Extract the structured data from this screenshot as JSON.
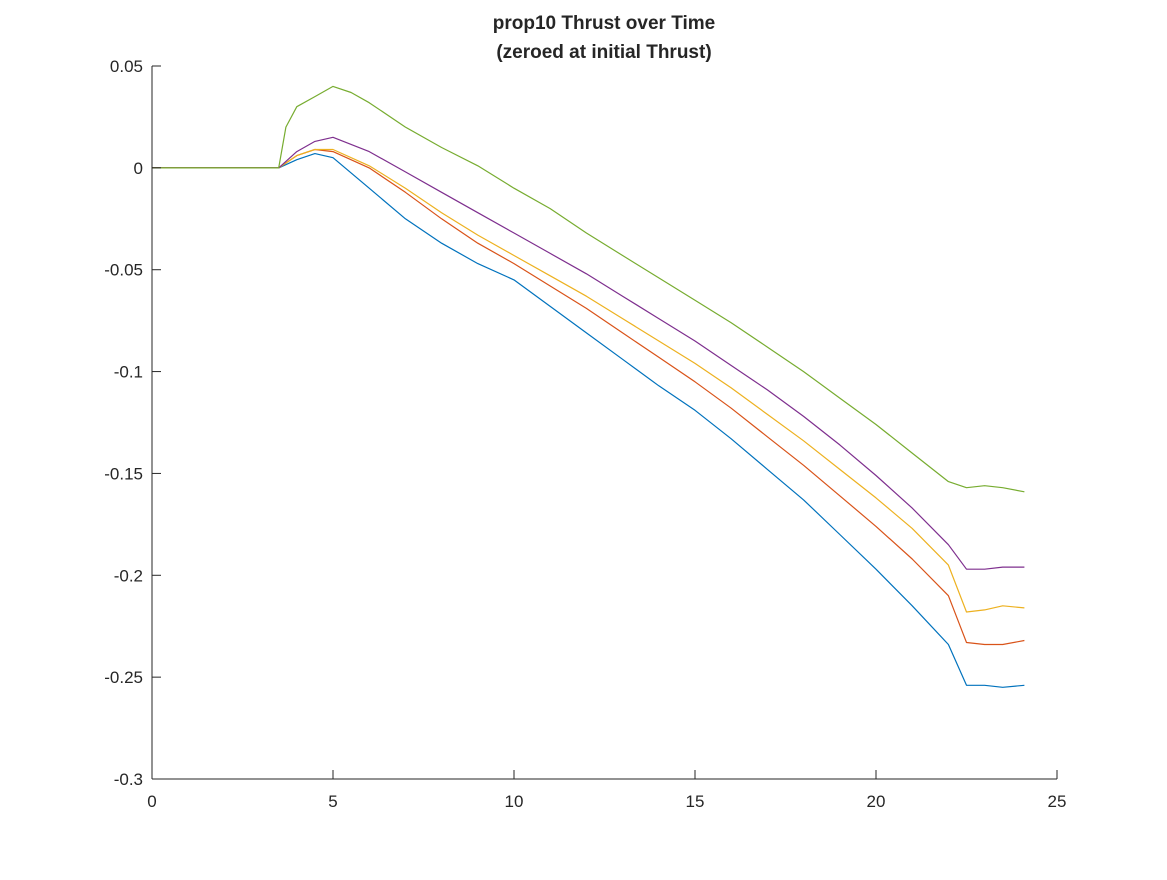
{
  "chart_data": {
    "type": "line",
    "title": [
      "prop10 Thrust over Time",
      "(zeroed at initial Thrust)"
    ],
    "xlabel": "",
    "ylabel": "",
    "xlim": [
      0,
      25
    ],
    "ylim": [
      -0.3,
      0.05
    ],
    "xticks": [
      0,
      5,
      10,
      15,
      20,
      25
    ],
    "xtick_labels": [
      "0",
      "5",
      "10",
      "15",
      "20",
      "25"
    ],
    "yticks": [
      0.05,
      0,
      -0.05,
      -0.1,
      -0.15,
      -0.2,
      -0.25,
      -0.3
    ],
    "ytick_labels": [
      "0.05",
      "0",
      "-0.05",
      "-0.1",
      "-0.15",
      "-0.2",
      "-0.25",
      "-0.3"
    ],
    "grid": false,
    "legend": "none",
    "series": [
      {
        "color": "#0072BD",
        "x": [
          0,
          1,
          2,
          3,
          3.5,
          4,
          4.5,
          5,
          6,
          7,
          8,
          9,
          10,
          11,
          12,
          13,
          14,
          15,
          16,
          17,
          18,
          19,
          20,
          21,
          22,
          22.5,
          23,
          23.5,
          24.1
        ],
        "y": [
          0,
          0,
          0,
          0,
          0,
          0.004,
          0.007,
          0.005,
          -0.01,
          -0.025,
          -0.037,
          -0.047,
          -0.055,
          -0.068,
          -0.081,
          -0.094,
          -0.107,
          -0.119,
          -0.133,
          -0.148,
          -0.163,
          -0.18,
          -0.197,
          -0.215,
          -0.234,
          -0.254,
          -0.254,
          -0.255,
          -0.254
        ]
      },
      {
        "color": "#D95319",
        "x": [
          0,
          1,
          2,
          3,
          3.5,
          4,
          4.5,
          5,
          6,
          7,
          8,
          9,
          10,
          11,
          12,
          13,
          14,
          15,
          16,
          17,
          18,
          19,
          20,
          21,
          22,
          22.5,
          23,
          23.5,
          24.1
        ],
        "y": [
          0,
          0,
          0,
          0,
          0,
          0.006,
          0.009,
          0.008,
          0,
          -0.012,
          -0.025,
          -0.037,
          -0.047,
          -0.058,
          -0.069,
          -0.081,
          -0.093,
          -0.105,
          -0.118,
          -0.132,
          -0.146,
          -0.161,
          -0.176,
          -0.192,
          -0.21,
          -0.233,
          -0.234,
          -0.234,
          -0.232
        ]
      },
      {
        "color": "#EDB120",
        "x": [
          0,
          1,
          2,
          3,
          3.5,
          4,
          4.5,
          5,
          6,
          7,
          8,
          9,
          10,
          11,
          12,
          13,
          14,
          15,
          16,
          17,
          18,
          19,
          20,
          21,
          22,
          22.5,
          23,
          23.5,
          24.1
        ],
        "y": [
          0,
          0,
          0,
          0,
          0,
          0.006,
          0.009,
          0.009,
          0.001,
          -0.01,
          -0.022,
          -0.033,
          -0.043,
          -0.053,
          -0.063,
          -0.074,
          -0.085,
          -0.096,
          -0.108,
          -0.121,
          -0.134,
          -0.148,
          -0.162,
          -0.177,
          -0.195,
          -0.218,
          -0.217,
          -0.215,
          -0.216
        ]
      },
      {
        "color": "#7E2F8E",
        "x": [
          0,
          1,
          2,
          3,
          3.5,
          4,
          4.5,
          5,
          6,
          7,
          8,
          9,
          10,
          11,
          12,
          13,
          14,
          15,
          16,
          17,
          18,
          19,
          20,
          21,
          22,
          22.5,
          23,
          23.5,
          24.1
        ],
        "y": [
          0,
          0,
          0,
          0,
          0,
          0.008,
          0.013,
          0.015,
          0.008,
          -0.002,
          -0.012,
          -0.022,
          -0.032,
          -0.042,
          -0.052,
          -0.063,
          -0.074,
          -0.085,
          -0.097,
          -0.109,
          -0.122,
          -0.136,
          -0.151,
          -0.167,
          -0.185,
          -0.197,
          -0.197,
          -0.196,
          -0.196
        ]
      },
      {
        "color": "#77AC30",
        "x": [
          0,
          1,
          2,
          3,
          3.5,
          3.7,
          4,
          4.5,
          5,
          5.5,
          6,
          7,
          8,
          9,
          10,
          11,
          12,
          13,
          14,
          15,
          16,
          17,
          18,
          19,
          20,
          21,
          22,
          22.5,
          23,
          23.5,
          24.1
        ],
        "y": [
          0,
          0,
          0,
          0,
          0,
          0.02,
          0.03,
          0.035,
          0.04,
          0.037,
          0.032,
          0.02,
          0.01,
          0.001,
          -0.01,
          -0.02,
          -0.032,
          -0.043,
          -0.054,
          -0.065,
          -0.076,
          -0.088,
          -0.1,
          -0.113,
          -0.126,
          -0.14,
          -0.154,
          -0.157,
          -0.156,
          -0.157,
          -0.159
        ]
      }
    ]
  }
}
